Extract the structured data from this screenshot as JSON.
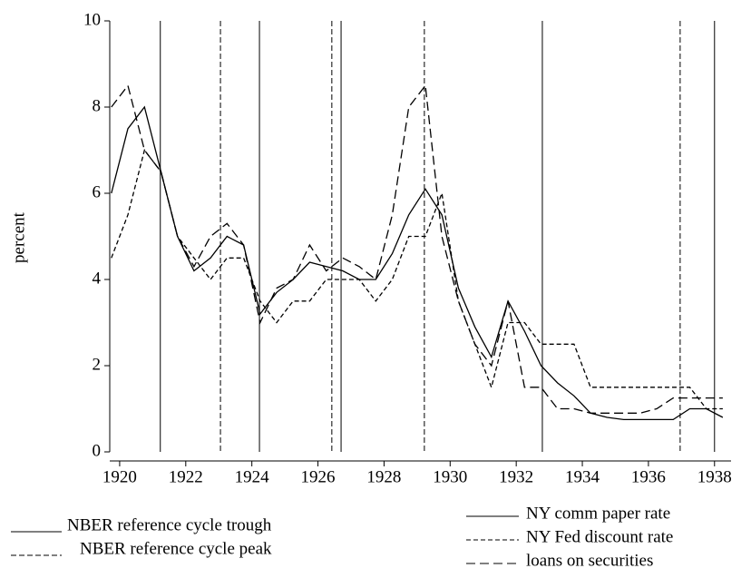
{
  "chart_data": {
    "type": "line",
    "y_label": "percent",
    "xlim": [
      1919.7,
      1938.5
    ],
    "xticks": [
      1920,
      1922,
      1924,
      1926,
      1928,
      1930,
      1932,
      1934,
      1936,
      1938
    ],
    "ylim": [
      0,
      10
    ],
    "yticks": [
      0,
      2,
      4,
      6,
      8,
      10
    ],
    "x": [
      1919.75,
      1920.25,
      1920.75,
      1921.25,
      1921.75,
      1922.25,
      1922.75,
      1923.25,
      1923.75,
      1924.25,
      1924.75,
      1925.25,
      1925.75,
      1926.25,
      1926.75,
      1927.25,
      1927.75,
      1928.25,
      1928.75,
      1929.25,
      1929.75,
      1930.25,
      1930.75,
      1931.25,
      1931.75,
      1932.25,
      1932.75,
      1933.25,
      1933.75,
      1934.25,
      1934.75,
      1935.25,
      1935.75,
      1936.25,
      1936.75,
      1937.25,
      1937.75,
      1938.25
    ],
    "series": [
      {
        "name": "NY comm paper rate",
        "color": "#000000",
        "dash": "none",
        "values": [
          6.0,
          7.5,
          8.0,
          6.5,
          5.0,
          4.2,
          4.5,
          5.0,
          4.8,
          3.2,
          3.7,
          4.0,
          4.4,
          4.3,
          4.2,
          4.0,
          4.0,
          4.6,
          5.5,
          6.1,
          5.5,
          3.8,
          2.9,
          2.2,
          3.5,
          2.8,
          2.0,
          1.6,
          1.3,
          0.9,
          0.8,
          0.75,
          0.75,
          0.75,
          0.75,
          1.0,
          1.0,
          0.8
        ]
      },
      {
        "name": "NY Fed discount rate",
        "color": "#000000",
        "dash": "5,3",
        "values": [
          4.5,
          5.5,
          7.0,
          6.5,
          5.0,
          4.5,
          4.0,
          4.5,
          4.5,
          3.5,
          3.0,
          3.5,
          3.5,
          4.0,
          4.0,
          4.0,
          3.5,
          4.0,
          5.0,
          5.0,
          6.0,
          3.5,
          2.5,
          1.5,
          3.0,
          3.0,
          2.5,
          2.5,
          2.5,
          1.5,
          1.5,
          1.5,
          1.5,
          1.5,
          1.5,
          1.5,
          1.0,
          1.0
        ]
      },
      {
        "name": "loans on securities",
        "color": "#000000",
        "dash": "10,5",
        "values": [
          8.0,
          8.5,
          7.0,
          6.5,
          5.0,
          4.3,
          5.0,
          5.3,
          4.8,
          3.0,
          3.8,
          4.0,
          4.8,
          4.2,
          4.5,
          4.3,
          4.0,
          5.5,
          8.0,
          8.5,
          5.0,
          3.5,
          2.5,
          2.0,
          3.5,
          1.5,
          1.5,
          1.0,
          1.0,
          0.9,
          0.9,
          0.9,
          0.9,
          1.0,
          1.25,
          1.25,
          1.25,
          1.25
        ]
      }
    ],
    "reference_lines": [
      {
        "name": "NBER reference cycle trough",
        "dash": "none",
        "x": [
          1921.23,
          1924.23,
          1926.7,
          1932.79,
          1938.0
        ]
      },
      {
        "name": "NBER reference cycle peak",
        "dash": "6,3",
        "x": [
          1923.05,
          1926.42,
          1929.22,
          1936.96
        ]
      }
    ]
  }
}
